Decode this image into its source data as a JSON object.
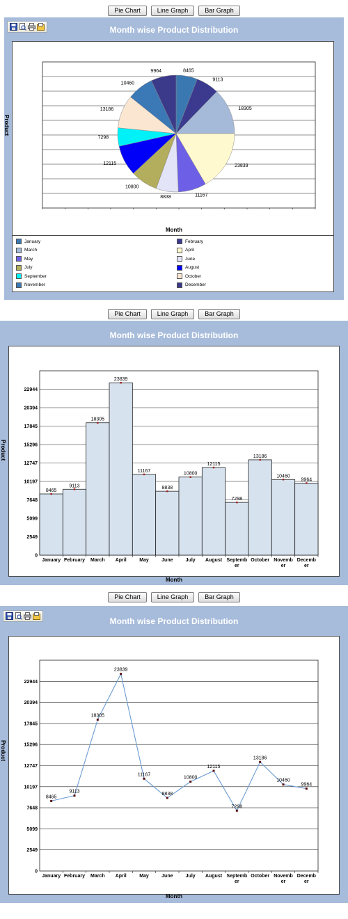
{
  "buttons": {
    "pie": "Pie Chart",
    "line": "Line Graph",
    "bar": "Bar Graph"
  },
  "toolbar_icons": [
    "save-icon",
    "print-preview-icon",
    "print-icon",
    "export-icon"
  ],
  "chart_data": [
    {
      "type": "pie",
      "title": "Month wise Product Distribution",
      "xlabel": "Month",
      "ylabel": "Product",
      "categories": [
        "January",
        "February",
        "March",
        "April",
        "May",
        "June",
        "July",
        "August",
        "September",
        "October",
        "November",
        "December"
      ],
      "values": [
        8465,
        9113,
        18305,
        23839,
        11167,
        8838,
        10800,
        12115,
        7298,
        13186,
        10460,
        9964
      ],
      "colors": [
        "#3a78b2",
        "#3b3a8e",
        "#a5bad9",
        "#fff9cf",
        "#6d60e6",
        "#e4e4f8",
        "#b3ad5e",
        "#0000f8",
        "#00f2f8",
        "#fbe6d2",
        "#3b78b6",
        "#3b3a8a"
      ],
      "legend_labels": [
        "January",
        "February",
        "March",
        "April",
        "May",
        "June",
        "July",
        "August",
        "September",
        "October",
        "November",
        "December"
      ]
    },
    {
      "type": "bar",
      "title": "Month wise Product Distribution",
      "xlabel": "Month",
      "ylabel": "Product",
      "categories": [
        "January",
        "February",
        "March",
        "April",
        "May",
        "June",
        "July",
        "August",
        "Septemb er",
        "October",
        "Novemb er",
        "Decemb er"
      ],
      "values": [
        8465,
        9113,
        18305,
        23839,
        11167,
        8838,
        10800,
        12115,
        7298,
        13186,
        10460,
        9964
      ],
      "yticks": [
        0,
        2549,
        5099,
        7648,
        10197,
        12747,
        15296,
        17845,
        20394,
        22944
      ],
      "ylim": [
        0,
        25493
      ]
    },
    {
      "type": "line",
      "title": "Month wise Product Distribution",
      "xlabel": "Month",
      "ylabel": "Product",
      "categories": [
        "January",
        "February",
        "March",
        "April",
        "May",
        "June",
        "July",
        "August",
        "Septemb er",
        "October",
        "Novemb er",
        "Decemb er"
      ],
      "values": [
        8465,
        9113,
        18305,
        23839,
        11167,
        8838,
        10800,
        12115,
        7298,
        13186,
        10460,
        9964
      ],
      "yticks": [
        0,
        2549,
        5099,
        7648,
        10197,
        12747,
        15296,
        17845,
        20394,
        22944
      ],
      "ylim": [
        0,
        25493
      ]
    }
  ]
}
